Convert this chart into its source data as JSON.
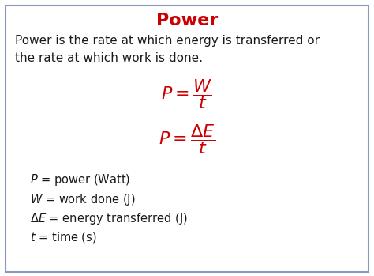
{
  "title": "Power",
  "title_color": "#cc0000",
  "title_fontsize": 16,
  "description_line1": "Power is the rate at which energy is transferred or",
  "description_line2": "the rate at which work is done.",
  "desc_fontsize": 11,
  "desc_color": "#1a1a1a",
  "eq_color": "#cc0000",
  "eq_fontsize": 16,
  "legend_fontsize": 10.5,
  "legend_color": "#1a1a1a",
  "background_color": "#ffffff",
  "border_color": "#8899bb",
  "fig_width": 4.74,
  "fig_height": 3.49,
  "dpi": 100
}
